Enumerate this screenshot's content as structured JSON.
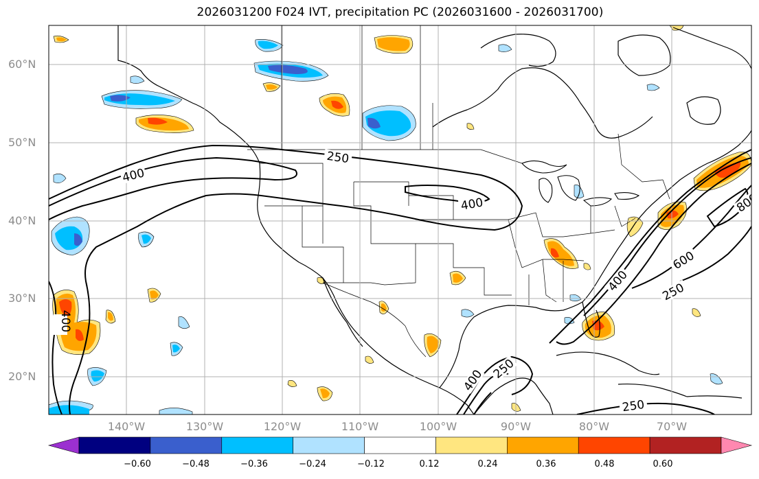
{
  "title": "2026031200 F024 IVT, precipitation PC (2026031600 - 2026031700)",
  "latitude_labels": [
    "60°N",
    "50°N",
    "40°N",
    "30°N",
    "20°N"
  ],
  "longitude_labels": [
    "140°W",
    "130°W",
    "120°W",
    "110°W",
    "100°W",
    "90°W",
    "80°W",
    "70°W"
  ],
  "colorbar": {
    "tick_labels": [
      "−0.60",
      "−0.48",
      "−0.36",
      "−0.24",
      "−0.12",
      "0.12",
      "0.24",
      "0.36",
      "0.48",
      "0.60"
    ],
    "colors": [
      "#9b30d0",
      "#000080",
      "#3a5fcd",
      "#00bfff",
      "#b0e2ff",
      "#ffffff",
      "#ffe680",
      "#ffa500",
      "#ff4500",
      "#b22222",
      "#ff88b0"
    ]
  },
  "contour_labels": [
    "400",
    "250",
    "400",
    "400",
    "400",
    "600",
    "250",
    "800",
    "400",
    "250",
    "250"
  ],
  "fill_colors": {
    "light_blue": "#b0e2ff",
    "sky_blue": "#00bfff",
    "royal_blue": "#3a5fcd",
    "light_yellow": "#ffe680",
    "orange": "#ffa500",
    "red_orange": "#ff4500"
  }
}
